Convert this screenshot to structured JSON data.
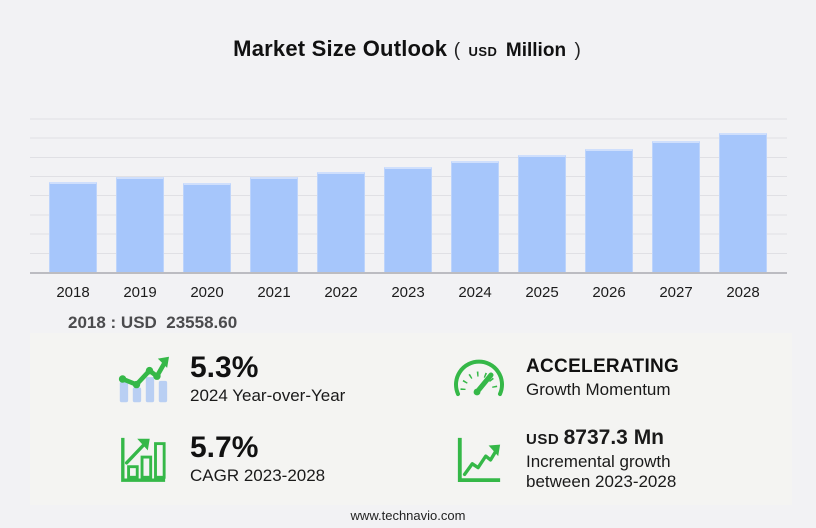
{
  "header": {
    "title": "Market Size Outlook",
    "unit_open": "(",
    "unit_currency": "USD",
    "unit_text": "Million",
    "unit_close": ")"
  },
  "chart_data": {
    "type": "bar",
    "categories": [
      "2018",
      "2019",
      "2020",
      "2021",
      "2022",
      "2023",
      "2024",
      "2025",
      "2026",
      "2027",
      "2028"
    ],
    "values": [
      23558.6,
      24720,
      23310,
      24720,
      26010,
      27348.3,
      28797.8,
      30380,
      32115,
      34010,
      36085.9
    ],
    "title": "Market Size Outlook",
    "unit": "USD Million",
    "xlabel": "",
    "ylabel": "",
    "ylim": [
      0,
      42700
    ],
    "gridline_step": 5000,
    "grid": "horizontal",
    "legend": "none",
    "bar_color": "#a6c6fb"
  },
  "annotation": {
    "baseline_text": "2018 : USD  23558.60"
  },
  "stats": {
    "yoy": {
      "value": "5.3%",
      "label": "2024 Year-over-Year",
      "icon": "bar-line-growth-icon"
    },
    "momentum": {
      "value": "ACCELERATING",
      "label": "Growth Momentum",
      "icon": "speedometer-icon"
    },
    "cagr": {
      "value": "5.7%",
      "label": "CAGR 2023-2028",
      "icon": "framed-bar-chart-arrow-icon"
    },
    "incremental": {
      "value_prefix": "USD",
      "value": "8737.3 Mn",
      "label_line1": "Incremental growth",
      "label_line2": "between 2023-2028",
      "icon": "axis-trend-arrow-icon"
    }
  },
  "footer": {
    "url": "www.technavio.com"
  },
  "colors": {
    "background": "#f2f2f4",
    "panel": "#f4f4f2",
    "bar": "#a6c6fb",
    "bar_light": "#b9cff3",
    "accent_green": "#35b848",
    "gridline": "#e0e0e4",
    "axis": "#bcbcc1"
  }
}
